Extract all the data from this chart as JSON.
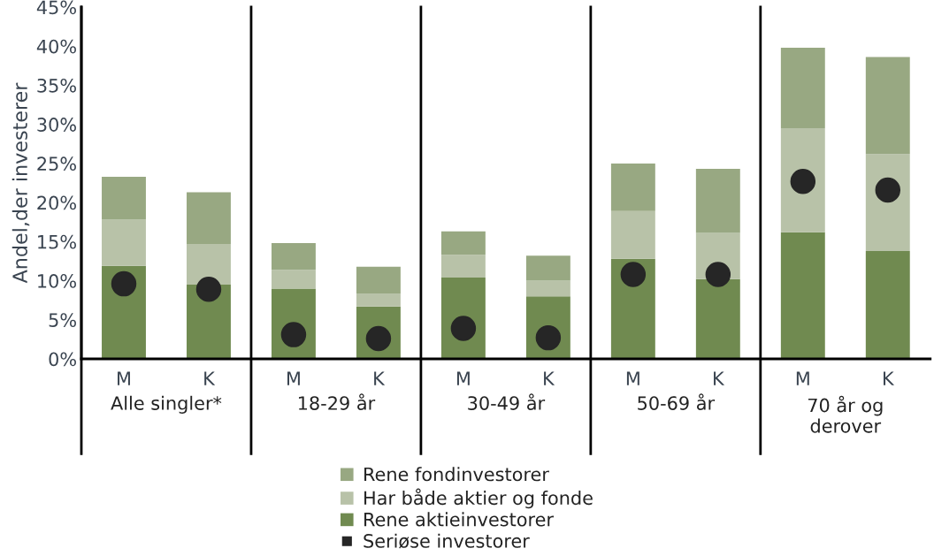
{
  "chart_data": {
    "type": "bar",
    "stacked": true,
    "ylabel": "Andel,der investerer",
    "categories": [
      "M",
      "K",
      "M",
      "K",
      "M",
      "K",
      "M",
      "K",
      "M",
      "K"
    ],
    "annotations": [
      "Alle singler*",
      "18-29 år",
      "30-49 år",
      "50-69 år",
      "70 år og\nderover"
    ],
    "series": [
      {
        "name": "Rene aktieinvestorer",
        "color": "#708a50",
        "values": [
          11.9,
          9.5,
          9.0,
          6.7,
          10.4,
          8.0,
          12.8,
          10.2,
          16.2,
          13.8
        ]
      },
      {
        "name": "Har både aktier og fonde",
        "color": "#b8c2a8",
        "values": [
          5.9,
          5.2,
          2.4,
          1.6,
          2.9,
          2.0,
          6.1,
          5.9,
          13.3,
          12.4
        ]
      },
      {
        "name": "Rene fondinvestorer",
        "color": "#98a882",
        "values": [
          5.5,
          6.6,
          3.4,
          3.5,
          3.0,
          3.2,
          6.1,
          8.2,
          10.3,
          12.4
        ]
      },
      {
        "name": "Seriøse investorer",
        "type": "scatter",
        "color": "#262626",
        "values": [
          9.6,
          8.9,
          3.1,
          2.6,
          3.9,
          2.7,
          10.8,
          10.8,
          22.7,
          21.6
        ]
      }
    ],
    "ylim": [
      0,
      45
    ],
    "yticks": [
      {
        "value": 0,
        "label": "0%"
      },
      {
        "value": 5,
        "label": "5%"
      },
      {
        "value": 10,
        "label": "10%"
      },
      {
        "value": 15,
        "label": "15%"
      },
      {
        "value": 20,
        "label": "20%"
      },
      {
        "value": 25,
        "label": "25%"
      },
      {
        "value": 30,
        "label": "30%"
      },
      {
        "value": 35,
        "label": "35%"
      },
      {
        "value": 40,
        "label": "40%"
      },
      {
        "value": 45,
        "label": "45%"
      }
    ],
    "grid": false,
    "legend": "bottom"
  }
}
